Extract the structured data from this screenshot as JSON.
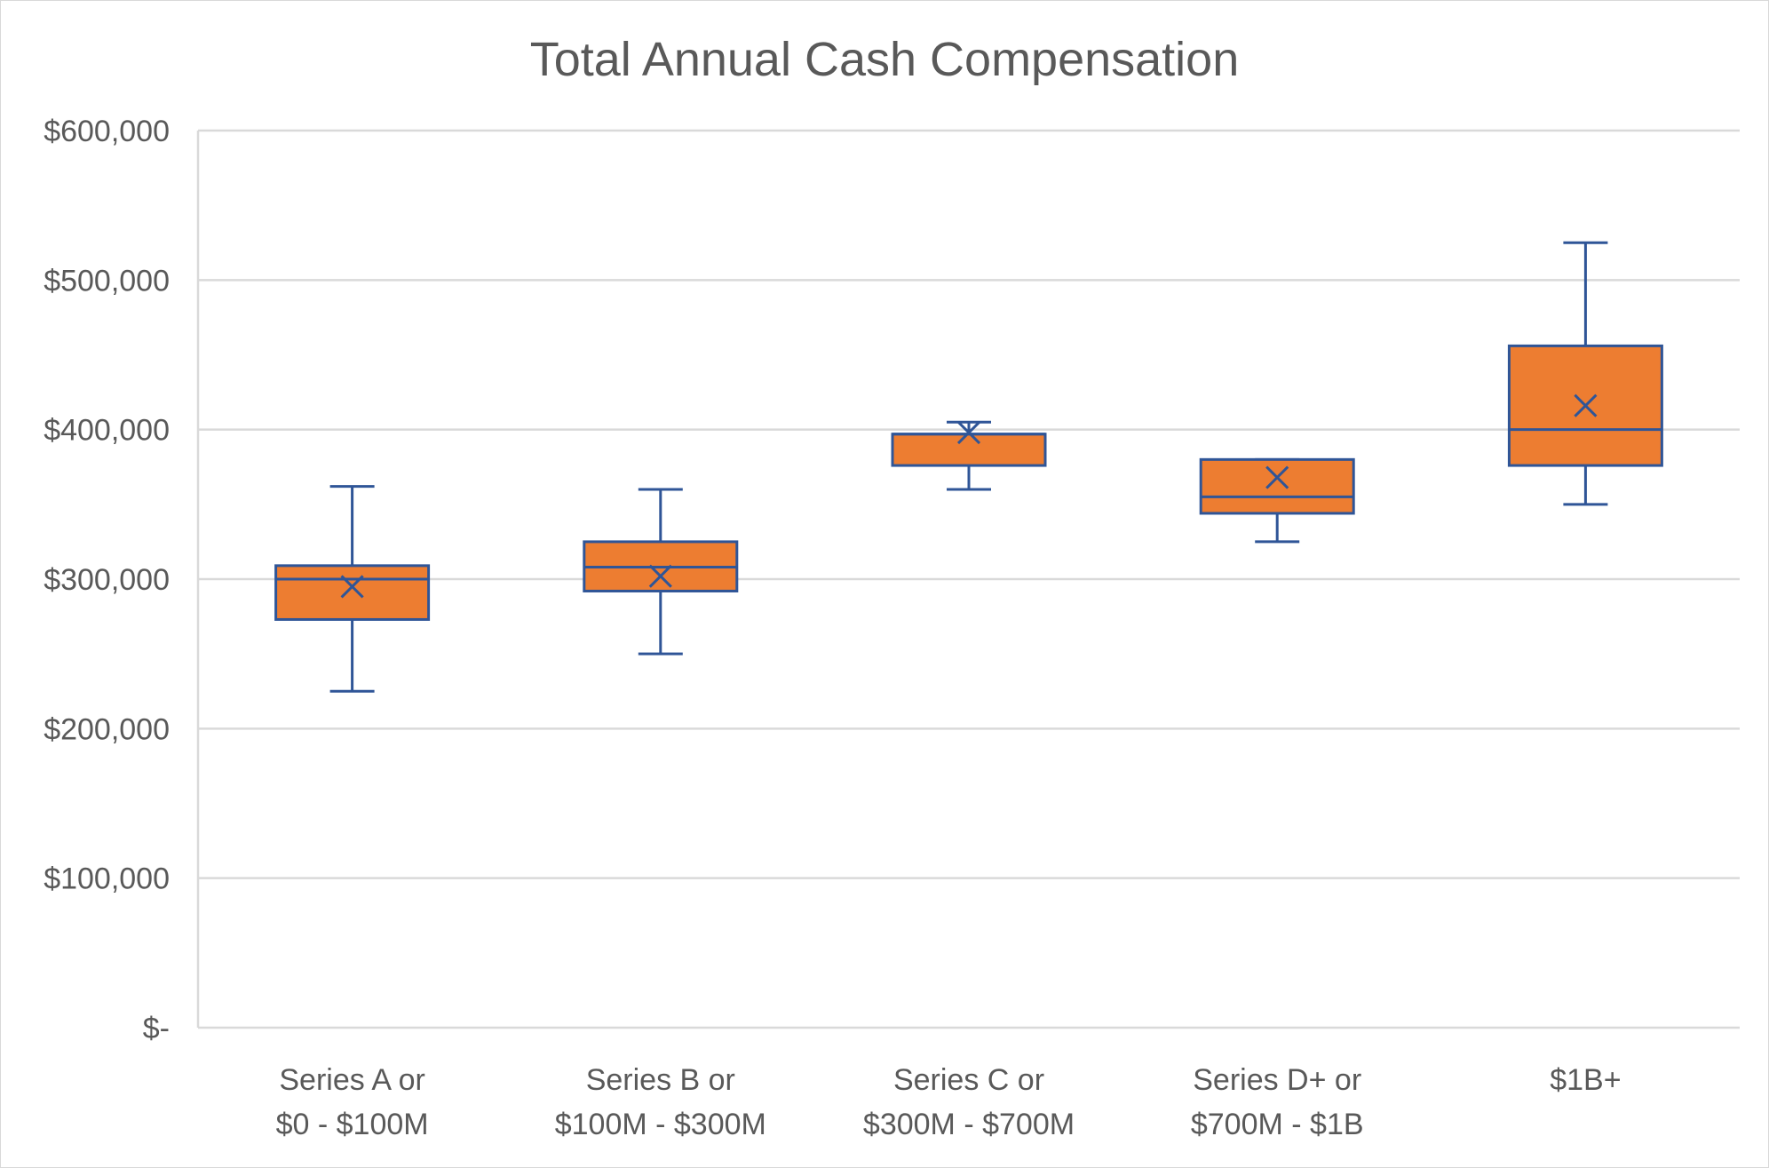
{
  "chart_data": {
    "type": "box",
    "title": "Total Annual Cash Compensation",
    "xlabel": "",
    "ylabel": "",
    "ylim": [
      0,
      600000
    ],
    "y_ticks": [
      0,
      100000,
      200000,
      300000,
      400000,
      500000,
      600000
    ],
    "y_tick_labels": [
      "$-",
      "$100,000",
      "$200,000",
      "$300,000",
      "$400,000",
      "$500,000",
      "$600,000"
    ],
    "grid": true,
    "legend": "none",
    "categories": [
      [
        "Series A or",
        "$0 - $100M"
      ],
      [
        "Series B or",
        "$100M - $300M"
      ],
      [
        "Series C or",
        "$300M - $700M"
      ],
      [
        "Series D+ or",
        "$700M - $1B"
      ],
      [
        "$1B+"
      ]
    ],
    "boxes": [
      {
        "min": 225000,
        "q1": 273000,
        "median": 300000,
        "q3": 309000,
        "max": 362000,
        "mean": 295000
      },
      {
        "min": 250000,
        "q1": 292000,
        "median": 308000,
        "q3": 325000,
        "max": 360000,
        "mean": 302000
      },
      {
        "min": 360000,
        "q1": 376000,
        "median": 397000,
        "q3": 397000,
        "max": 405000,
        "mean": 398000
      },
      {
        "min": 325000,
        "q1": 344000,
        "median": 355000,
        "q3": 380000,
        "max": 380000,
        "mean": 368000
      },
      {
        "min": 350000,
        "q1": 376000,
        "median": 400000,
        "q3": 456000,
        "max": 525000,
        "mean": 416000
      }
    ],
    "colors": {
      "box_fill": "#ED7D31",
      "box_stroke": "#2F5597",
      "grid": "#d9d9d9",
      "text": "#595959"
    }
  }
}
